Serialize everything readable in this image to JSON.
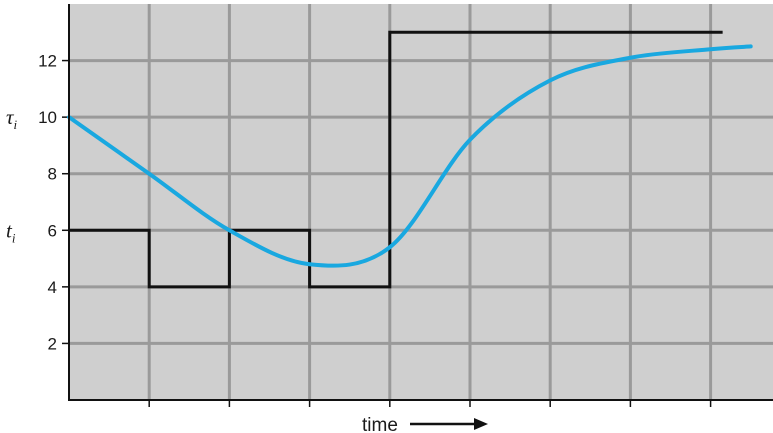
{
  "chart_data": {
    "type": "line",
    "xlabel": "time",
    "ylim": [
      0,
      14
    ],
    "yticks": [
      2,
      4,
      6,
      8,
      10,
      12
    ],
    "grid": true,
    "background": "#cfcfcf",
    "grid_color": "#9a9a9a",
    "x_intervals": 9,
    "series": [
      {
        "label_symbol": "t",
        "label_subscript": "i",
        "label_y": 6,
        "style": "step",
        "color": "#111111",
        "points": [
          [
            0,
            6
          ],
          [
            1,
            6
          ],
          [
            1,
            4
          ],
          [
            2,
            4
          ],
          [
            2,
            6
          ],
          [
            3,
            6
          ],
          [
            3,
            4
          ],
          [
            4,
            4
          ],
          [
            4,
            13
          ],
          [
            8.15,
            13
          ]
        ]
      },
      {
        "label_symbol": "τ",
        "label_subscript": "i",
        "label_y": 10,
        "style": "smooth",
        "color": "#19a8e0",
        "points": [
          [
            0,
            10
          ],
          [
            1,
            8
          ],
          [
            2,
            6
          ],
          [
            3,
            4.8
          ],
          [
            4,
            5.4
          ],
          [
            5,
            9.2
          ],
          [
            6,
            11.3
          ],
          [
            7,
            12.1
          ],
          [
            8,
            12.4
          ],
          [
            8.5,
            12.5
          ]
        ]
      }
    ]
  }
}
